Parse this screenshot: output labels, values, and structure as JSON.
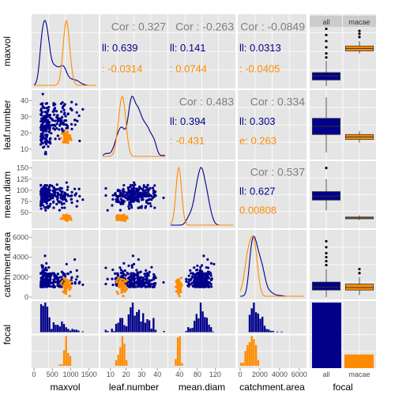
{
  "colors": {
    "all": "#00008b",
    "macae": "#ff8c00",
    "panel": "#e5e5e5",
    "grid": "#ffffff",
    "corr_text": "#7f7f7f"
  },
  "chart_data": {
    "type": "scatter",
    "title": "",
    "variables": [
      "maxvol",
      "leaf.number",
      "mean.diam",
      "catchment.area",
      "focal"
    ],
    "groups": [
      "all",
      "macae"
    ],
    "axis_ticks": {
      "maxvol": [
        "0",
        "500",
        "1000",
        "1500"
      ],
      "leaf.number": [
        "10",
        "20",
        "30",
        "40"
      ],
      "mean.diam": [
        "40",
        "80",
        "120"
      ],
      "catchment.area": [
        "0",
        "2000",
        "4000",
        "6000"
      ],
      "focal": [
        "all",
        "macae"
      ]
    },
    "y_ticks": {
      "leaf.number": [
        "10",
        "20",
        "30",
        "40"
      ],
      "mean.diam": [
        "50",
        "75",
        "100",
        "125",
        "150"
      ],
      "catchment.area": [
        "0",
        "2000",
        "4000",
        "6000"
      ]
    },
    "correlations": [
      {
        "pair": [
          "maxvol",
          "leaf.number"
        ],
        "overall": "Cor : 0.327",
        "all": "ll: 0.639",
        "macae": ": -0.0314"
      },
      {
        "pair": [
          "maxvol",
          "mean.diam"
        ],
        "overall": "Cor : -0.263",
        "all": "ll: 0.141",
        "macae": ": 0.0744"
      },
      {
        "pair": [
          "maxvol",
          "catchment.area"
        ],
        "overall": "Cor : -0.0849",
        "all": "ll: 0.0313",
        "macae": ": -0.0405"
      },
      {
        "pair": [
          "leaf.number",
          "mean.diam"
        ],
        "overall": "Cor : 0.483",
        "all": "ll: 0.394",
        "macae": ": -0.431"
      },
      {
        "pair": [
          "leaf.number",
          "catchment.area"
        ],
        "overall": "Cor : 0.334",
        "all": "ll: 0.303",
        "macae": "e: 0.263"
      },
      {
        "pair": [
          "mean.diam",
          "catchment.area"
        ],
        "overall": "Cor : 0.537",
        "all": "ll: 0.627",
        "macae": "0.00808"
      }
    ],
    "focal_counts": {
      "all": 240,
      "macae": 50
    },
    "ranges": {
      "maxvol": [
        0,
        1700
      ],
      "leaf.number": [
        5,
        45
      ],
      "mean.diam": [
        20,
        160
      ],
      "catchment.area": [
        0,
        6500
      ]
    },
    "boxplots": {
      "maxvol": {
        "all": {
          "q1": 150,
          "med": 250,
          "q3": 330,
          "lo": 0,
          "hi": 620,
          "out": [
            700,
            800,
            950,
            1100,
            1250,
            1400
          ]
        },
        "macae": {
          "q1": 860,
          "med": 920,
          "q3": 980,
          "lo": 800,
          "hi": 1100,
          "out": [
            1200,
            1280,
            1350
          ]
        }
      },
      "leaf.number": {
        "all": {
          "q1": 19,
          "med": 24,
          "q3": 29,
          "lo": 8,
          "hi": 42,
          "out": []
        },
        "macae": {
          "q1": 16,
          "med": 17.5,
          "q3": 19,
          "lo": 14,
          "hi": 21,
          "out": []
        }
      },
      "mean.diam": {
        "all": {
          "q1": 78,
          "med": 87,
          "q3": 97,
          "lo": 55,
          "hi": 125,
          "out": [
            150
          ]
        },
        "macae": {
          "q1": 36,
          "med": 38,
          "q3": 40,
          "lo": 33,
          "hi": 44,
          "out": []
        }
      },
      "catchment.area": {
        "all": {
          "q1": 700,
          "med": 1000,
          "q3": 1500,
          "lo": 0,
          "hi": 2800,
          "out": [
            3200,
            3600,
            4000,
            4400,
            5000,
            5600
          ]
        },
        "macae": {
          "q1": 700,
          "med": 950,
          "q3": 1300,
          "lo": 200,
          "hi": 2000,
          "out": [
            2400,
            2800
          ]
        }
      }
    },
    "axis_labels": {
      "x": [
        "maxvol",
        "leaf.number",
        "mean.diam",
        "catchment.area",
        "focal"
      ],
      "y": [
        "maxvol",
        "leaf.number",
        "mean.diam",
        "catchment.area",
        "focal"
      ]
    },
    "strip_labels": [
      "all",
      "macae"
    ]
  }
}
